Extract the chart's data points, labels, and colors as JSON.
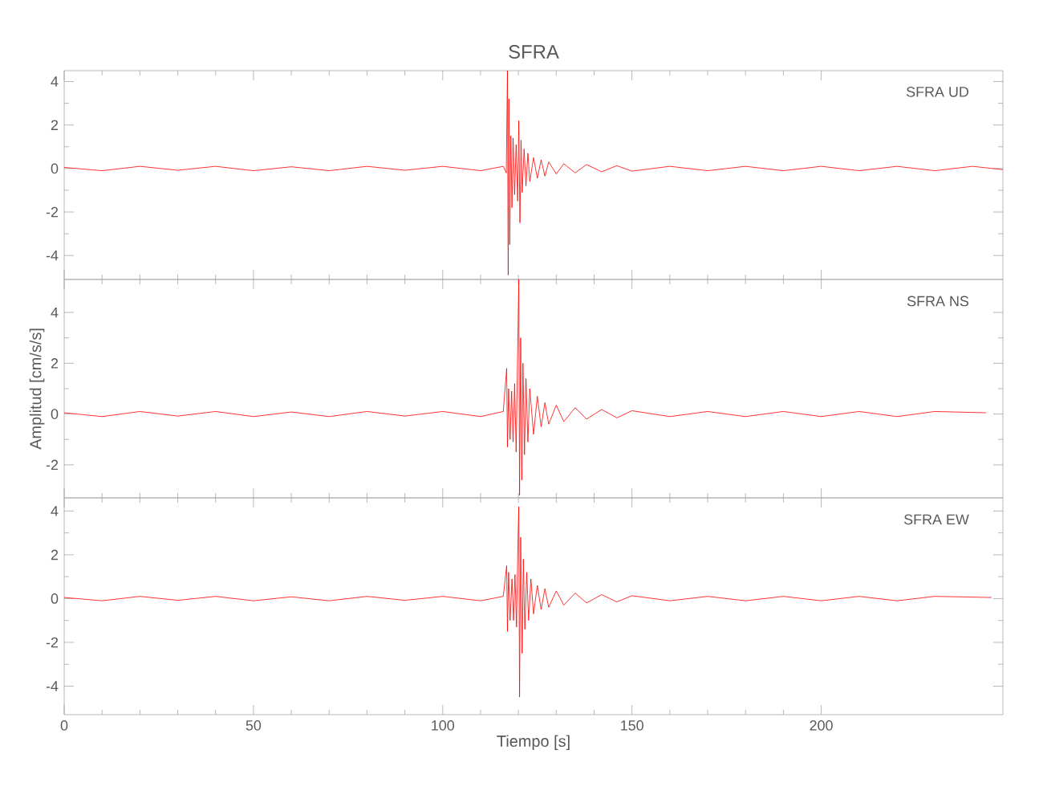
{
  "chart_data": [
    {
      "type": "line",
      "title": "SFRA",
      "annotations": [
        "SFRA   UD"
      ],
      "xlim": [
        0,
        248
      ],
      "xticks": [
        0,
        50,
        100,
        150,
        200
      ],
      "ylim": [
        -5.1,
        4.5
      ],
      "yticks": [
        -4,
        -2,
        0,
        2,
        4
      ],
      "tick_labels": "y",
      "grid": false,
      "marker": "none",
      "line_style": "solid",
      "series": [
        {
          "color": "#ff0000",
          "x": [
            0,
            10,
            20,
            30,
            40,
            50,
            60,
            70,
            80,
            90,
            100,
            110,
            116,
            116.8,
            117.1,
            117.3,
            117.5,
            117.7,
            118,
            118.3,
            118.6,
            119,
            119.4,
            119.8,
            120.1,
            120.4,
            120.7,
            121,
            121.5,
            122,
            122.5,
            123,
            124,
            125,
            126,
            127,
            128,
            130,
            132,
            135,
            138,
            142,
            146,
            150,
            160,
            170,
            180,
            190,
            200,
            210,
            220,
            230,
            240,
            248
          ],
          "values": [
            0.05,
            -0.1,
            0.1,
            -0.08,
            0.1,
            -0.1,
            0.08,
            -0.1,
            0.1,
            -0.08,
            0.1,
            -0.1,
            0.1,
            -0.2,
            4.5,
            -4.9,
            3.2,
            -3.5,
            1.5,
            -1.8,
            1.4,
            -1.2,
            1.1,
            -1.5,
            2.2,
            -2.5,
            1.3,
            -1.1,
            0.9,
            -0.8,
            0.7,
            -0.6,
            0.5,
            -0.45,
            0.4,
            -0.35,
            0.3,
            -0.25,
            0.22,
            -0.2,
            0.18,
            -0.15,
            0.13,
            -0.12,
            0.1,
            -0.1,
            0.1,
            -0.1,
            0.1,
            -0.1,
            0.1,
            -0.1,
            0.1,
            -0.05
          ]
        }
      ]
    },
    {
      "type": "line",
      "ylabel": "Amplitud [cm/s/s]",
      "annotations": [
        "SFRA   NS"
      ],
      "xlim": [
        0,
        248
      ],
      "xticks": [
        0,
        50,
        100,
        150,
        200
      ],
      "ylim": [
        -3.3,
        5.3
      ],
      "yticks": [
        -2,
        0,
        2,
        4
      ],
      "tick_labels": "y",
      "grid": false,
      "marker": "none",
      "line_style": "solid",
      "series": [
        {
          "color": "#ff0000",
          "x": [
            0,
            10,
            20,
            30,
            40,
            50,
            60,
            70,
            80,
            90,
            100,
            110,
            116,
            116.9,
            117.1,
            117.4,
            117.8,
            118.2,
            118.6,
            119,
            119.4,
            119.8,
            120.1,
            120.3,
            120.6,
            120.9,
            121.2,
            121.6,
            122,
            122.5,
            123,
            124,
            125,
            126,
            127,
            128,
            130,
            132,
            135,
            138,
            142,
            146,
            150,
            160,
            170,
            180,
            190,
            200,
            210,
            220,
            230,
            243.5
          ],
          "values": [
            0.05,
            -0.1,
            0.1,
            -0.08,
            0.1,
            -0.1,
            0.08,
            -0.1,
            0.1,
            -0.08,
            0.1,
            -0.1,
            0.1,
            1.8,
            -1.3,
            1.0,
            -1.0,
            0.9,
            -1.1,
            1.2,
            -1.5,
            2.5,
            5.3,
            -3.2,
            3.0,
            -2.6,
            2.0,
            -1.6,
            1.4,
            -1.1,
            1.0,
            -0.8,
            0.7,
            -0.5,
            0.45,
            -0.4,
            0.35,
            -0.3,
            0.25,
            -0.2,
            0.18,
            -0.15,
            0.13,
            -0.1,
            0.1,
            -0.1,
            0.1,
            -0.1,
            0.1,
            -0.1,
            0.1,
            0.05
          ]
        }
      ]
    },
    {
      "type": "line",
      "xlabel": "Tiempo [s]",
      "annotations": [
        "SFRA   EW"
      ],
      "xlim": [
        0,
        248
      ],
      "xticks": [
        0,
        50,
        100,
        150,
        200
      ],
      "ylim": [
        -5.3,
        4.6
      ],
      "yticks": [
        -4,
        -2,
        0,
        2,
        4
      ],
      "grid": false,
      "marker": "none",
      "line_style": "solid",
      "series": [
        {
          "color": "#ff0000",
          "x": [
            0,
            10,
            20,
            30,
            40,
            50,
            60,
            70,
            80,
            90,
            100,
            110,
            116,
            116.9,
            117.1,
            117.4,
            117.8,
            118.3,
            118.7,
            119.1,
            119.5,
            119.9,
            120.1,
            120.3,
            120.6,
            121,
            121.3,
            121.7,
            122.2,
            122.7,
            123.3,
            124,
            125,
            126,
            127,
            128,
            130,
            132,
            135,
            138,
            142,
            146,
            150,
            160,
            170,
            180,
            190,
            200,
            210,
            220,
            230,
            245
          ],
          "values": [
            0.05,
            -0.1,
            0.1,
            -0.08,
            0.1,
            -0.1,
            0.08,
            -0.1,
            0.1,
            -0.08,
            0.1,
            -0.1,
            0.1,
            1.5,
            -1.5,
            1.2,
            -1.0,
            0.9,
            -1.0,
            1.1,
            -1.3,
            2.8,
            4.2,
            -4.5,
            2.8,
            -2.5,
            1.8,
            -1.4,
            1.2,
            -1.0,
            0.9,
            -0.7,
            0.6,
            -0.5,
            0.45,
            -0.4,
            0.35,
            -0.3,
            0.25,
            -0.2,
            0.18,
            -0.15,
            0.13,
            -0.1,
            0.1,
            -0.1,
            0.1,
            -0.1,
            0.1,
            -0.1,
            0.1,
            0.05
          ]
        }
      ]
    }
  ]
}
